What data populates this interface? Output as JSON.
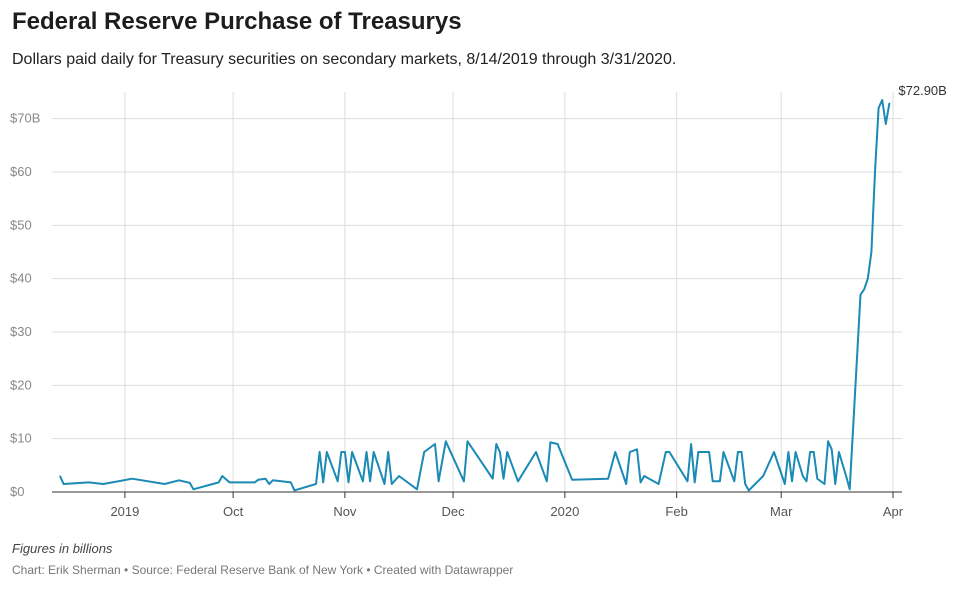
{
  "header": {
    "title": "Federal Reserve Purchase of Treasurys",
    "subtitle": "Dollars paid daily for Treasury securities on secondary markets, 8/14/2019 through 3/31/2020."
  },
  "footer": {
    "notes": "Figures in billions",
    "byline": "Chart: Erik Sherman • Source: Federal Reserve Bank of New York • Created with Datawrapper"
  },
  "colors": {
    "line": "#1b8ab5",
    "grid": "#dddddd",
    "axis": "#333333",
    "tick_text": "#888888"
  },
  "chart_data": {
    "type": "line",
    "ylabel": "",
    "xlabel": "",
    "ylim": [
      0,
      75
    ],
    "grid": true,
    "y_ticks": [
      {
        "value": 0,
        "label": "$0"
      },
      {
        "value": 10,
        "label": "$10"
      },
      {
        "value": 20,
        "label": "$20"
      },
      {
        "value": 30,
        "label": "$30"
      },
      {
        "value": 40,
        "label": "$40"
      },
      {
        "value": 50,
        "label": "$50"
      },
      {
        "value": 60,
        "label": "$60"
      },
      {
        "value": 70,
        "label": "$70B"
      }
    ],
    "x_ticks": [
      {
        "date": "2019-09-01",
        "label": "2019"
      },
      {
        "date": "2019-10-01",
        "label": "Oct"
      },
      {
        "date": "2019-11-01",
        "label": "Nov"
      },
      {
        "date": "2019-12-01",
        "label": "Dec"
      },
      {
        "date": "2020-01-01",
        "label": "2020"
      },
      {
        "date": "2020-02-01",
        "label": "Feb"
      },
      {
        "date": "2020-03-01",
        "label": "Mar"
      },
      {
        "date": "2020-04-01",
        "label": "Apr"
      }
    ],
    "x_range": [
      "2019-08-14",
      "2020-04-01"
    ],
    "end_label": "$72.90B",
    "series": [
      {
        "values": [
          [
            "2019-08-14",
            3.0
          ],
          [
            "2019-08-15",
            1.5
          ],
          [
            "2019-08-22",
            1.8
          ],
          [
            "2019-08-26",
            1.5
          ],
          [
            "2019-09-03",
            2.5
          ],
          [
            "2019-09-12",
            1.5
          ],
          [
            "2019-09-16",
            2.2
          ],
          [
            "2019-09-19",
            1.7
          ],
          [
            "2019-09-20",
            0.5
          ],
          [
            "2019-09-27",
            1.8
          ],
          [
            "2019-09-28",
            3.0
          ],
          [
            "2019-09-30",
            1.8
          ],
          [
            "2019-10-07",
            1.8
          ],
          [
            "2019-10-08",
            2.3
          ],
          [
            "2019-10-10",
            2.5
          ],
          [
            "2019-10-11",
            1.5
          ],
          [
            "2019-10-12",
            2.2
          ],
          [
            "2019-10-17",
            1.8
          ],
          [
            "2019-10-18",
            0.3
          ],
          [
            "2019-10-24",
            1.5
          ],
          [
            "2019-10-25",
            7.5
          ],
          [
            "2019-10-26",
            1.8
          ],
          [
            "2019-10-27",
            7.5
          ],
          [
            "2019-10-30",
            2.0
          ],
          [
            "2019-10-31",
            7.5
          ],
          [
            "2019-11-01",
            7.5
          ],
          [
            "2019-11-02",
            1.8
          ],
          [
            "2019-11-03",
            7.5
          ],
          [
            "2019-11-06",
            2.0
          ],
          [
            "2019-11-07",
            7.5
          ],
          [
            "2019-11-08",
            2.0
          ],
          [
            "2019-11-09",
            7.5
          ],
          [
            "2019-11-12",
            1.5
          ],
          [
            "2019-11-13",
            7.5
          ],
          [
            "2019-11-14",
            1.5
          ],
          [
            "2019-11-16",
            3.0
          ],
          [
            "2019-11-21",
            0.5
          ],
          [
            "2019-11-23",
            7.5
          ],
          [
            "2019-11-26",
            9.0
          ],
          [
            "2019-11-27",
            2.0
          ],
          [
            "2019-11-29",
            9.5
          ],
          [
            "2019-12-04",
            2.0
          ],
          [
            "2019-12-05",
            9.5
          ],
          [
            "2019-12-12",
            2.5
          ],
          [
            "2019-12-13",
            9.0
          ],
          [
            "2019-12-14",
            7.5
          ],
          [
            "2019-12-15",
            2.5
          ],
          [
            "2019-12-16",
            7.5
          ],
          [
            "2019-12-19",
            2.0
          ],
          [
            "2019-12-24",
            7.5
          ],
          [
            "2019-12-27",
            2.0
          ],
          [
            "2019-12-28",
            9.3
          ],
          [
            "2019-12-30",
            9.0
          ],
          [
            "2020-01-03",
            2.3
          ],
          [
            "2020-01-13",
            2.5
          ],
          [
            "2020-01-15",
            7.5
          ],
          [
            "2020-01-18",
            1.5
          ],
          [
            "2020-01-19",
            7.5
          ],
          [
            "2020-01-21",
            8.0
          ],
          [
            "2020-01-22",
            1.8
          ],
          [
            "2020-01-23",
            3.0
          ],
          [
            "2020-01-27",
            1.5
          ],
          [
            "2020-01-29",
            7.5
          ],
          [
            "2020-01-30",
            7.5
          ],
          [
            "2020-02-04",
            2.0
          ],
          [
            "2020-02-05",
            9.0
          ],
          [
            "2020-02-06",
            1.8
          ],
          [
            "2020-02-07",
            7.5
          ],
          [
            "2020-02-08",
            7.5
          ],
          [
            "2020-02-10",
            7.5
          ],
          [
            "2020-02-11",
            2.0
          ],
          [
            "2020-02-13",
            2.0
          ],
          [
            "2020-02-14",
            7.5
          ],
          [
            "2020-02-17",
            2.0
          ],
          [
            "2020-02-18",
            7.5
          ],
          [
            "2020-02-19",
            7.5
          ],
          [
            "2020-02-20",
            1.5
          ],
          [
            "2020-02-21",
            0.3
          ],
          [
            "2020-02-25",
            3.0
          ],
          [
            "2020-02-28",
            7.5
          ],
          [
            "2020-03-02",
            1.5
          ],
          [
            "2020-03-03",
            7.5
          ],
          [
            "2020-03-04",
            2.0
          ],
          [
            "2020-03-05",
            7.5
          ],
          [
            "2020-03-07",
            3.0
          ],
          [
            "2020-03-08",
            2.0
          ],
          [
            "2020-03-09",
            7.5
          ],
          [
            "2020-03-10",
            7.5
          ],
          [
            "2020-03-11",
            2.5
          ],
          [
            "2020-03-13",
            1.5
          ],
          [
            "2020-03-14",
            9.5
          ],
          [
            "2020-03-15",
            8.0
          ],
          [
            "2020-03-16",
            1.5
          ],
          [
            "2020-03-17",
            7.5
          ],
          [
            "2020-03-19",
            3.0
          ],
          [
            "2020-03-20",
            0.5
          ],
          [
            "2020-03-23",
            37.0
          ],
          [
            "2020-03-24",
            38.0
          ],
          [
            "2020-03-25",
            40.0
          ],
          [
            "2020-03-26",
            45.0
          ],
          [
            "2020-03-27",
            60.0
          ],
          [
            "2020-03-28",
            72.0
          ],
          [
            "2020-03-29",
            73.5
          ],
          [
            "2020-03-30",
            69.0
          ],
          [
            "2020-03-31",
            72.9
          ]
        ]
      }
    ]
  }
}
